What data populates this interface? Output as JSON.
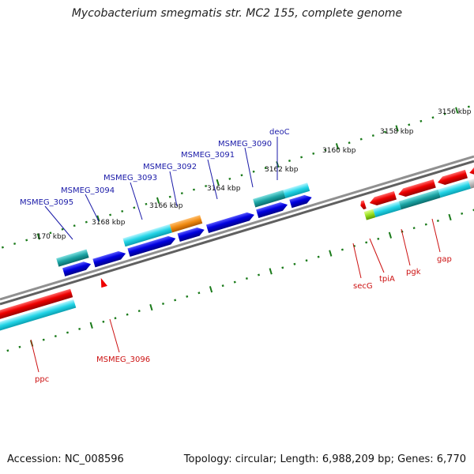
{
  "title": "Mycobacterium smegmatis str. MC2 155, complete genome",
  "footer": {
    "accession_label": "Accession:",
    "accession": "NC_008596",
    "topology_label": "Topology:",
    "topology": "circular",
    "length_label": "Length:",
    "length": "6,988,209 bp",
    "genes_label": "Genes:",
    "genes": "6,770"
  },
  "ruler": {
    "labels": [
      "3156 kbp",
      "3158 kbp",
      "3160 kbp",
      "3162 kbp",
      "3164 kbp",
      "3166 kbp",
      "3168 kbp",
      "3170 kbp"
    ]
  },
  "gene_labels": {
    "forward": [
      "deoC",
      "MSMEG_3090",
      "MSMEG_3091",
      "MSMEG_3092",
      "MSMEG_3093",
      "MSMEG_3094",
      "MSMEG_3095"
    ],
    "reverse": [
      "secG",
      "tpiA",
      "pgk",
      "gap",
      "MSMEG_3096",
      "ppc"
    ]
  },
  "colors": {
    "forward_gene": "#0000dd",
    "forward_label": "#1a1aa8",
    "reverse_gene": "#ee0000",
    "reverse_label": "#cc1111",
    "cds_cyan": "#22d4e6",
    "cds_teal": "#1aa3a3",
    "orange": "#f08a10",
    "lime": "#99e020",
    "grey": "#bbbbbb",
    "backbone": "#808080",
    "tick": "#1a7a1a"
  }
}
